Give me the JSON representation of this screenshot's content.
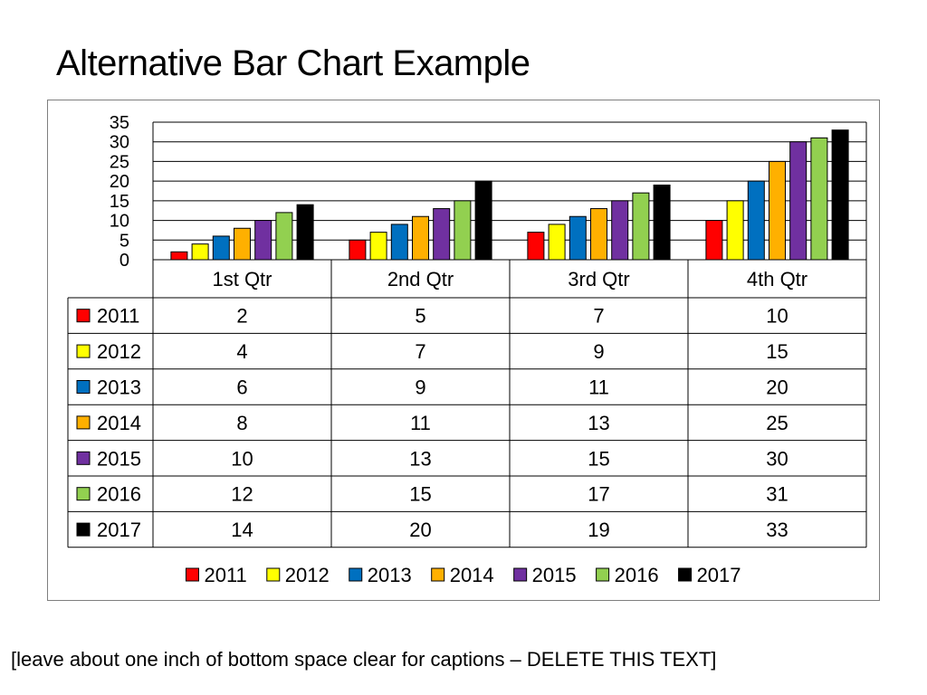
{
  "slide": {
    "title": "Alternative Bar Chart Example",
    "caption": "[leave about one inch of bottom space clear for captions – DELETE THIS TEXT]"
  },
  "chart_data": {
    "type": "bar",
    "title": "",
    "xlabel": "",
    "ylabel": "",
    "categories": [
      "1st Qtr",
      "2nd Qtr",
      "3rd Qtr",
      "4th Qtr"
    ],
    "ylim": [
      0,
      35
    ],
    "yticks": [
      0,
      5,
      10,
      15,
      20,
      25,
      30,
      35
    ],
    "grid": true,
    "legend_position": "bottom",
    "data_table": true,
    "series": [
      {
        "name": "2011",
        "color": "#ff0000",
        "values": [
          2,
          5,
          7,
          10
        ]
      },
      {
        "name": "2012",
        "color": "#ffff00",
        "values": [
          4,
          7,
          9,
          15
        ]
      },
      {
        "name": "2013",
        "color": "#0070c0",
        "values": [
          6,
          9,
          11,
          20
        ]
      },
      {
        "name": "2014",
        "color": "#ffb000",
        "values": [
          8,
          11,
          13,
          25
        ]
      },
      {
        "name": "2015",
        "color": "#7030a0",
        "values": [
          10,
          13,
          15,
          30
        ]
      },
      {
        "name": "2016",
        "color": "#92d050",
        "values": [
          12,
          15,
          17,
          31
        ]
      },
      {
        "name": "2017",
        "color": "#000000",
        "values": [
          14,
          20,
          19,
          33
        ]
      }
    ]
  }
}
